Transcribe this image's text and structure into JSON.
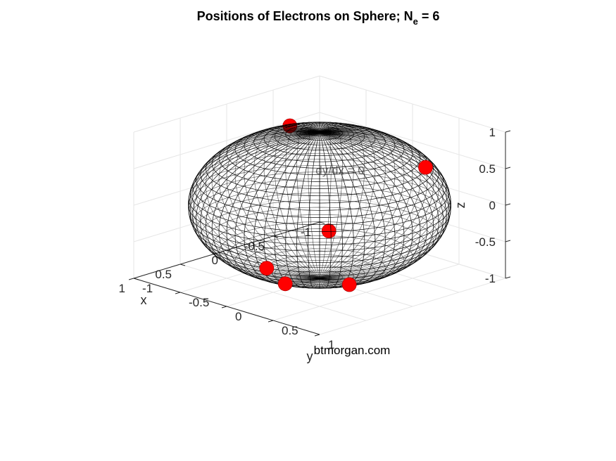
{
  "chart_data": {
    "type": "scatter",
    "title": "Positions of Electrons on Sphere; N",
    "title_subscript": "e",
    "title_suffix": " = 6",
    "xlabel": "x",
    "ylabel": "y",
    "zlabel": "z",
    "xlim": [
      -1,
      1
    ],
    "ylim": [
      -1,
      1
    ],
    "zlim": [
      -1,
      1
    ],
    "x_ticks": [
      "-1",
      "-0.5",
      "0",
      "0.5",
      "1"
    ],
    "y_ticks": [
      "-1",
      "-0.5",
      "0",
      "0.5",
      "1"
    ],
    "z_ticks": [
      "1",
      "0.5",
      "0",
      "-0.5",
      "-1"
    ],
    "grid": true,
    "view": "3d-isometric",
    "sphere": {
      "radius": 1,
      "style": "wireframe",
      "color": "#000000"
    },
    "points": {
      "color": "#ff0000",
      "x": [
        -0.29,
        0.86,
        -0.49,
        0.29,
        -0.54,
        0.62
      ],
      "y": [
        -0.61,
        0.29,
        0.65,
        0.61,
        -0.44,
        0.25
      ],
      "z": [
        0.74,
        -0.42,
        0.58,
        -0.74,
        -0.73,
        -0.74
      ]
    },
    "annotations": [
      "btmorgan.com",
      "dy/dx = 0"
    ]
  }
}
